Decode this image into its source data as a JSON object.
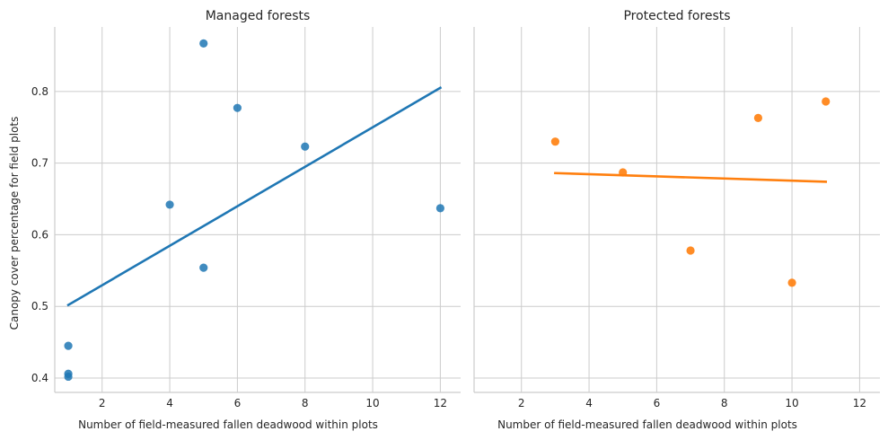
{
  "chart_data": [
    {
      "type": "scatter",
      "title": "Managed forests",
      "xlabel": "Number of field-measured fallen deadwood within plots",
      "ylabel": "Canopy cover percentage for field plots",
      "xlim": [
        0.6,
        12.6
      ],
      "ylim": [
        0.38,
        0.89
      ],
      "xticks": [
        2,
        4,
        6,
        8,
        10,
        12
      ],
      "yticks": [
        0.4,
        0.5,
        0.6,
        0.7,
        0.8
      ],
      "grid": true,
      "color": "#1f77b4",
      "points": [
        {
          "x": 1,
          "y": 0.445
        },
        {
          "x": 1,
          "y": 0.406
        },
        {
          "x": 1,
          "y": 0.402
        },
        {
          "x": 4,
          "y": 0.642
        },
        {
          "x": 5,
          "y": 0.867
        },
        {
          "x": 5,
          "y": 0.554
        },
        {
          "x": 6,
          "y": 0.777
        },
        {
          "x": 8,
          "y": 0.723
        },
        {
          "x": 12,
          "y": 0.637
        }
      ],
      "regression": {
        "x": [
          1,
          12
        ],
        "y": [
          0.502,
          0.805
        ]
      }
    },
    {
      "type": "scatter",
      "title": "Protected forests",
      "xlabel": "Number of field-measured fallen deadwood within plots",
      "ylabel": "",
      "xlim": [
        0.6,
        12.6
      ],
      "ylim": [
        0.38,
        0.89
      ],
      "xticks": [
        2,
        4,
        6,
        8,
        10,
        12
      ],
      "yticks": [
        0.4,
        0.5,
        0.6,
        0.7,
        0.8
      ],
      "grid": true,
      "color": "#ff7f0e",
      "points": [
        {
          "x": 3,
          "y": 0.73
        },
        {
          "x": 5,
          "y": 0.687
        },
        {
          "x": 7,
          "y": 0.578
        },
        {
          "x": 9,
          "y": 0.763
        },
        {
          "x": 10,
          "y": 0.533
        },
        {
          "x": 11,
          "y": 0.786
        }
      ],
      "regression": {
        "x": [
          3,
          11
        ],
        "y": [
          0.686,
          0.674
        ]
      }
    }
  ]
}
